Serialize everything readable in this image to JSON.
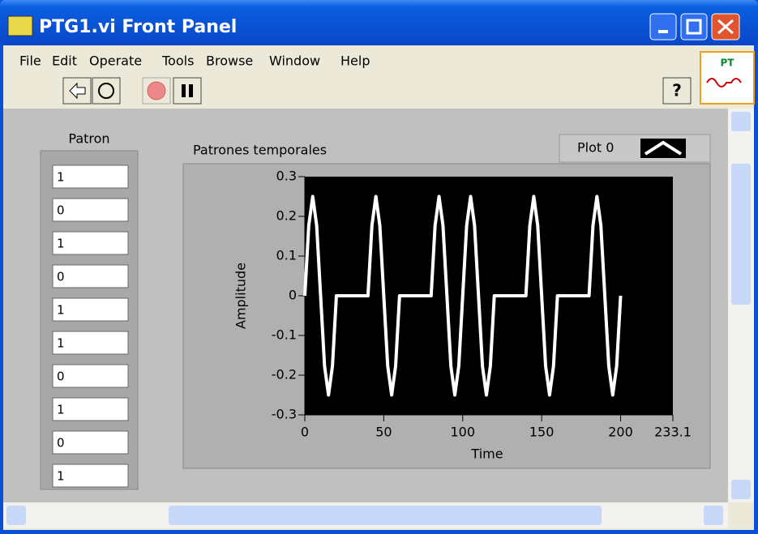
{
  "window": {
    "title": "PTG1.vi Front Panel",
    "menu": [
      "File",
      "Edit",
      "Operate",
      "Tools",
      "Browse",
      "Window",
      "Help"
    ],
    "icon_label": "PT"
  },
  "patron": {
    "label": "Patron",
    "values": [
      "1",
      "0",
      "1",
      "0",
      "1",
      "1",
      "0",
      "1",
      "0",
      "1"
    ]
  },
  "chart_data": {
    "type": "line",
    "title": "Patrones temporales",
    "x_label": "Time",
    "y_label": "Amplitude",
    "xlim": [
      0,
      233.1
    ],
    "xticks": [
      0,
      50,
      100,
      150,
      200,
      233.1
    ],
    "ylim": [
      -0.3,
      0.3
    ],
    "yticks": [
      0.3,
      0.2,
      0.1,
      0,
      -0.1,
      -0.2,
      -0.3
    ],
    "grid": false,
    "legend": "top-right",
    "x": [
      0,
      2.5,
      5,
      7.5,
      10,
      12.5,
      15,
      17.5,
      20,
      22.5,
      25,
      27.5,
      30,
      32.5,
      35,
      37.5,
      40,
      42.5,
      45,
      47.5,
      50,
      52.5,
      55,
      57.5,
      60,
      62.5,
      65,
      67.5,
      70,
      72.5,
      75,
      77.5,
      80,
      82.5,
      85,
      87.5,
      90,
      92.5,
      95,
      97.5,
      100,
      102.5,
      105,
      107.5,
      110,
      112.5,
      115,
      117.5,
      120,
      122.5,
      125,
      127.5,
      130,
      132.5,
      135,
      137.5,
      140,
      142.5,
      145,
      147.5,
      150,
      152.5,
      155,
      157.5,
      160,
      162.5,
      165,
      167.5,
      170,
      172.5,
      175,
      177.5,
      180,
      182.5,
      185,
      187.5,
      190,
      192.5,
      195,
      197.5,
      200
    ],
    "series": [
      {
        "name": "Plot 0",
        "color": "#ffffff",
        "values": [
          0,
          0.177,
          0.25,
          0.177,
          0,
          -0.177,
          -0.25,
          -0.177,
          0,
          0,
          0,
          0,
          0,
          0,
          0,
          0,
          0,
          0.177,
          0.25,
          0.177,
          0,
          -0.177,
          -0.25,
          -0.177,
          0,
          0,
          0,
          0,
          0,
          0,
          0,
          0,
          0,
          0.177,
          0.25,
          0.177,
          0,
          -0.177,
          -0.25,
          -0.177,
          0,
          0.177,
          0.25,
          0.177,
          0,
          -0.177,
          -0.25,
          -0.177,
          0,
          0,
          0,
          0,
          0,
          0,
          0,
          0,
          0,
          0.177,
          0.25,
          0.177,
          0,
          -0.177,
          -0.25,
          -0.177,
          0,
          0,
          0,
          0,
          0,
          0,
          0,
          0,
          0,
          0.177,
          0.25,
          0.177,
          0,
          -0.177,
          -0.25,
          -0.177,
          0
        ]
      }
    ]
  }
}
